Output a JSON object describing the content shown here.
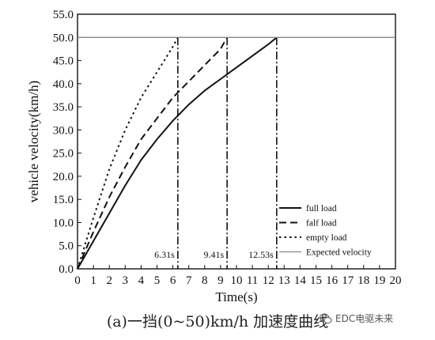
{
  "chart_data": {
    "type": "line",
    "xlabel": "Time(s)",
    "ylabel": "vehicle velocity(km/h)",
    "xlim": [
      0,
      20
    ],
    "ylim": [
      0,
      55
    ],
    "x_ticks": [
      0,
      1,
      2,
      3,
      4,
      5,
      6,
      7,
      8,
      9,
      10,
      11,
      12,
      13,
      14,
      15,
      16,
      17,
      18,
      19,
      20
    ],
    "y_ticks": [
      "0.0",
      "5.0",
      "10.0",
      "15.0",
      "20.0",
      "25.0",
      "30.0",
      "35.0",
      "40.0",
      "45.0",
      "50.0",
      "55.0"
    ],
    "grid": false,
    "legend_position": "bottom-right",
    "series": [
      {
        "name": "full load",
        "style": "solid",
        "color": "#111111",
        "x": [
          0,
          1,
          2,
          3,
          4,
          5,
          6,
          7,
          8,
          9,
          10,
          11,
          12,
          12.53
        ],
        "y": [
          0,
          6,
          12,
          18,
          23.5,
          28,
          32,
          35.5,
          38.5,
          41,
          43.5,
          46,
          48.5,
          50
        ]
      },
      {
        "name": "falf load",
        "style": "dashed",
        "color": "#111111",
        "x": [
          0,
          1,
          2,
          3,
          4,
          5,
          6,
          7,
          8,
          9,
          9.41
        ],
        "y": [
          0,
          8,
          15.5,
          22,
          28,
          32.5,
          37,
          40.5,
          44,
          47.5,
          50
        ]
      },
      {
        "name": "empty load",
        "style": "dotted",
        "color": "#111111",
        "x": [
          0,
          1,
          2,
          3,
          4,
          5,
          6,
          6.31
        ],
        "y": [
          0,
          11,
          21.5,
          30,
          37,
          42.5,
          48,
          50
        ]
      },
      {
        "name": "Expected velocity",
        "style": "solid",
        "color": "#888888",
        "x": [
          0,
          20
        ],
        "y": [
          50,
          50
        ]
      }
    ],
    "annotations": [
      {
        "x": 6.31,
        "label": "6.31s"
      },
      {
        "x": 9.41,
        "label": "9.41s"
      },
      {
        "x": 12.53,
        "label": "12.53s"
      }
    ]
  },
  "caption": "(a)一挡(0~50)km/h 加速度曲线",
  "watermark": "EDC电驱未来"
}
